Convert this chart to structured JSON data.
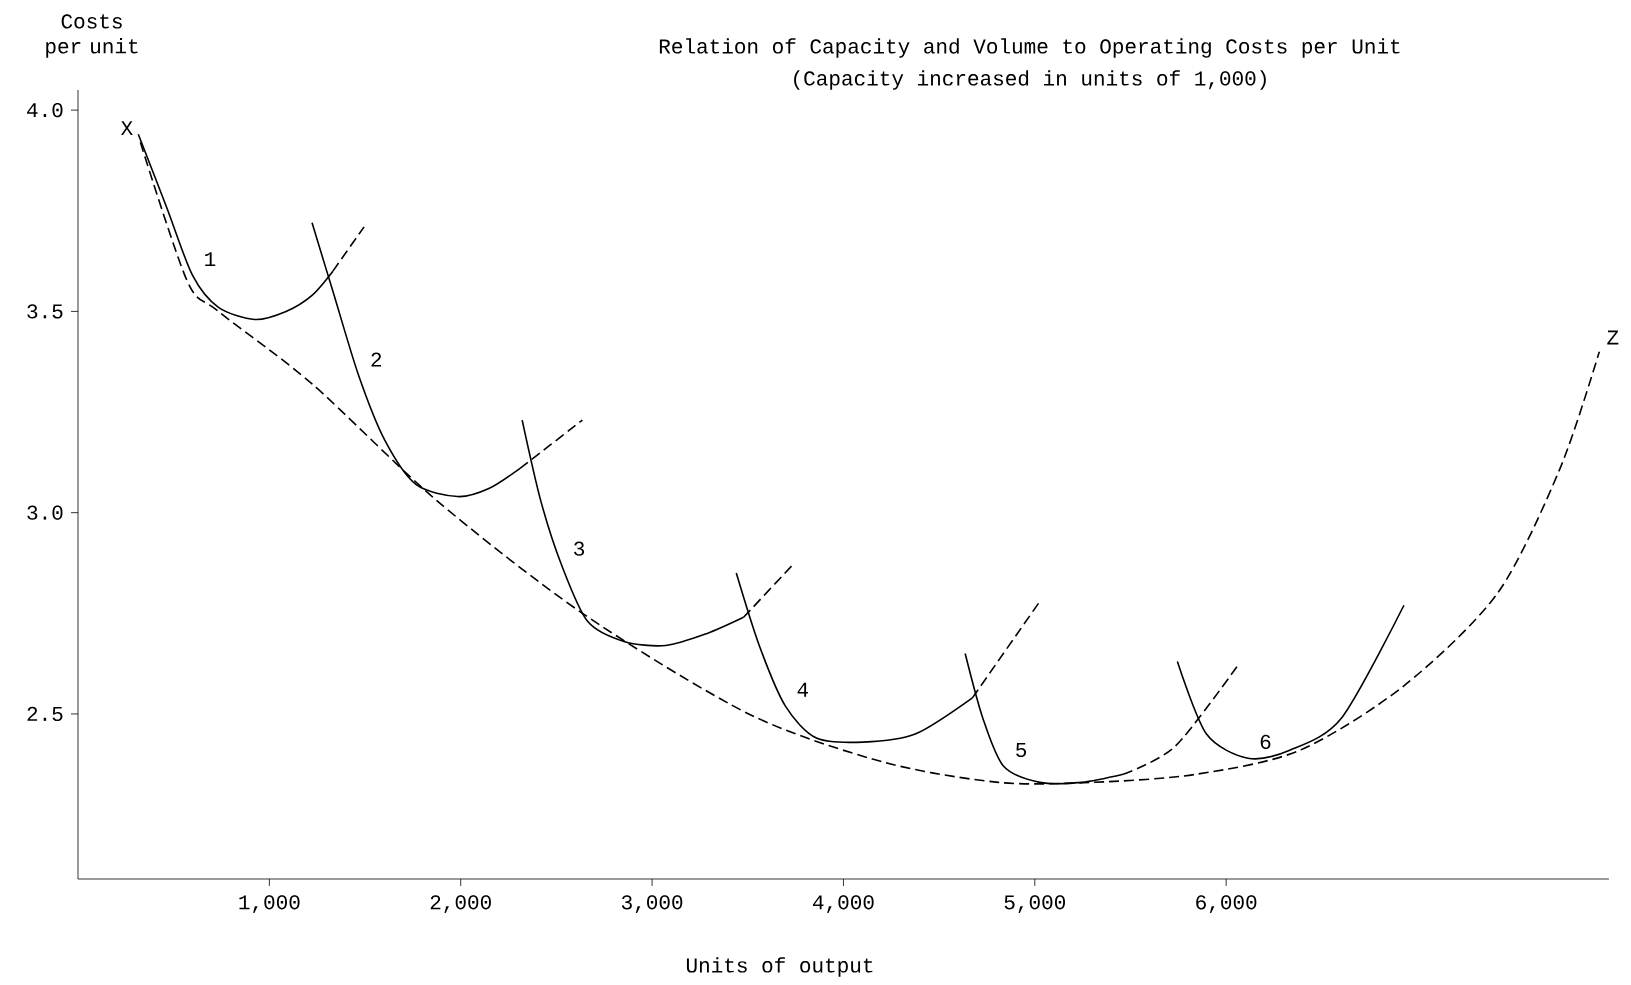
{
  "chart_data": {
    "type": "line",
    "title": "Relation of Capacity and Volume to Operating Costs per Unit",
    "subtitle": "(Capacity increased in units of 1,000)",
    "xlabel": "Units of output",
    "ylabel": "Costs per unit",
    "xlim": [
      0,
      8000
    ],
    "ylim": [
      2.09,
      4.05
    ],
    "xticks": [
      {
        "value": 1000,
        "label": "1,000"
      },
      {
        "value": 2000,
        "label": "2,000"
      },
      {
        "value": 3000,
        "label": "3,000"
      },
      {
        "value": 4000,
        "label": "4,000"
      },
      {
        "value": 5000,
        "label": "5,000"
      },
      {
        "value": 6000,
        "label": "6,000"
      }
    ],
    "yticks": [
      {
        "value": 2.5,
        "label": "2.5"
      },
      {
        "value": 3.0,
        "label": "3.0"
      },
      {
        "value": 3.5,
        "label": "3.5"
      },
      {
        "value": 4.0,
        "label": "4.0"
      }
    ],
    "marker": "none",
    "series": [
      {
        "color": "#000000",
        "line_style": "dashed",
        "x": [
          326,
          571,
          734,
          1223,
          1875,
          2636,
          3505,
          4212,
          4810,
          5299,
          5842,
          6386,
          6929,
          7418,
          7745,
          7950
        ],
        "values": [
          3.92,
          3.575,
          3.5,
          3.32,
          3.03,
          2.75,
          2.5,
          2.38,
          2.33,
          2.33,
          2.35,
          2.41,
          2.57,
          2.8,
          3.11,
          3.4
        ]
      },
      {
        "name": "1",
        "color": "#000000",
        "line_style": "solid",
        "x": [
          315,
          462,
          598,
          734,
          924,
          1087,
          1223,
          1332
        ],
        "values": [
          3.94,
          3.76,
          3.59,
          3.51,
          3.48,
          3.5,
          3.54,
          3.6
        ]
      },
      {
        "color": "#000000",
        "line_style": "dashed",
        "x": [
          1332,
          1495
        ],
        "values": [
          3.6,
          3.71
        ]
      },
      {
        "name": "2",
        "color": "#000000",
        "line_style": "solid",
        "x": [
          1223,
          1332,
          1467,
          1603,
          1766,
          1984,
          2147,
          2310
        ],
        "values": [
          3.72,
          3.55,
          3.34,
          3.18,
          3.07,
          3.04,
          3.06,
          3.11
        ]
      },
      {
        "color": "#000000",
        "line_style": "dashed",
        "x": [
          2310,
          2636
        ],
        "values": [
          3.11,
          3.23
        ]
      },
      {
        "name": "3",
        "color": "#000000",
        "line_style": "solid",
        "x": [
          2321,
          2418,
          2527,
          2663,
          2853,
          3071,
          3288,
          3478
        ],
        "values": [
          3.23,
          3.03,
          2.87,
          2.73,
          2.68,
          2.67,
          2.7,
          2.74
        ]
      },
      {
        "color": "#000000",
        "line_style": "dashed",
        "x": [
          3478,
          3734
        ],
        "values": [
          2.74,
          2.87
        ]
      },
      {
        "name": "4",
        "color": "#000000",
        "line_style": "solid",
        "x": [
          3440,
          3560,
          3696,
          3859,
          4103,
          4375,
          4674
        ],
        "values": [
          2.85,
          2.67,
          2.52,
          2.44,
          2.43,
          2.45,
          2.54
        ]
      },
      {
        "color": "#000000",
        "line_style": "dashed",
        "x": [
          4674,
          5027
        ],
        "values": [
          2.54,
          2.78
        ]
      },
      {
        "name": "5",
        "color": "#000000",
        "line_style": "solid",
        "x": [
          4636,
          4728,
          4837,
          5027,
          5245,
          5462
        ],
        "values": [
          2.65,
          2.49,
          2.37,
          2.33,
          2.33,
          2.35
        ]
      },
      {
        "color": "#000000",
        "line_style": "dashed",
        "x": [
          5462,
          5734,
          6060
        ],
        "values": [
          2.35,
          2.42,
          2.62
        ]
      },
      {
        "name": "6",
        "color": "#000000",
        "line_style": "solid",
        "x": [
          5745,
          5897,
          6114,
          6332,
          6603,
          6929
        ],
        "values": [
          2.63,
          2.45,
          2.39,
          2.41,
          2.49,
          2.77
        ]
      }
    ],
    "annotations": [
      "X",
      "Z"
    ]
  }
}
